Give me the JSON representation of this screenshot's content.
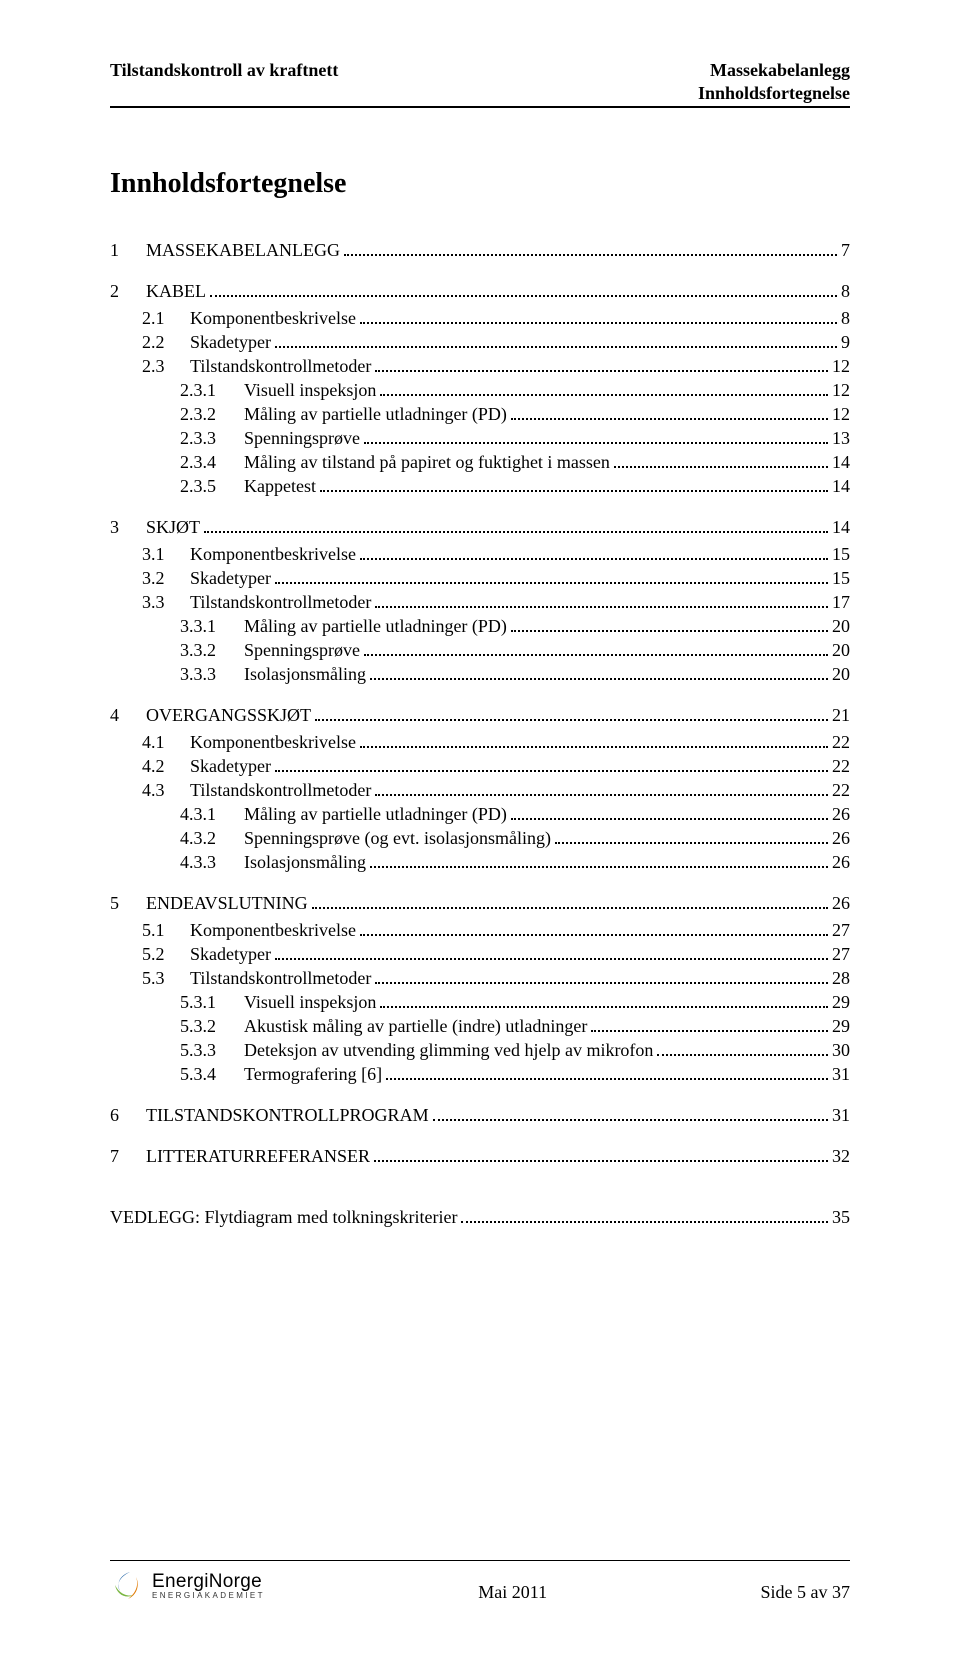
{
  "header": {
    "left": "Tilstandskontroll av kraftnett",
    "right_line1": "Massekabelanlegg",
    "right_line2": "Innholdsfortegnelse"
  },
  "toc_title": "Innholdsfortegnelse",
  "toc": [
    {
      "level": 0,
      "num": "1",
      "label": "MASSEKABELANLEGG",
      "page": "7"
    },
    {
      "level": 0,
      "num": "2",
      "label": "KABEL",
      "page": "8"
    },
    {
      "level": 1,
      "num": "2.1",
      "label": "Komponentbeskrivelse",
      "page": "8"
    },
    {
      "level": 1,
      "num": "2.2",
      "label": "Skadetyper",
      "page": "9"
    },
    {
      "level": 1,
      "num": "2.3",
      "label": "Tilstandskontrollmetoder",
      "page": "12"
    },
    {
      "level": 2,
      "num": "2.3.1",
      "label": "Visuell inspeksjon",
      "page": "12"
    },
    {
      "level": 2,
      "num": "2.3.2",
      "label": "Måling av partielle utladninger (PD)",
      "page": "12"
    },
    {
      "level": 2,
      "num": "2.3.3",
      "label": "Spenningsprøve",
      "page": "13"
    },
    {
      "level": 2,
      "num": "2.3.4",
      "label": "Måling av tilstand på papiret og fuktighet i massen",
      "page": "14"
    },
    {
      "level": 2,
      "num": "2.3.5",
      "label": "Kappetest",
      "page": "14"
    },
    {
      "level": 0,
      "num": "3",
      "label": "SKJØT",
      "page": "14"
    },
    {
      "level": 1,
      "num": "3.1",
      "label": "Komponentbeskrivelse",
      "page": "15"
    },
    {
      "level": 1,
      "num": "3.2",
      "label": "Skadetyper",
      "page": "15"
    },
    {
      "level": 1,
      "num": "3.3",
      "label": "Tilstandskontrollmetoder",
      "page": "17"
    },
    {
      "level": 2,
      "num": "3.3.1",
      "label": "Måling av partielle utladninger (PD)",
      "page": "20"
    },
    {
      "level": 2,
      "num": "3.3.2",
      "label": "Spenningsprøve",
      "page": "20"
    },
    {
      "level": 2,
      "num": "3.3.3",
      "label": "Isolasjonsmåling",
      "page": "20"
    },
    {
      "level": 0,
      "num": "4",
      "label": "OVERGANGSSKJØT",
      "page": "21"
    },
    {
      "level": 1,
      "num": "4.1",
      "label": "Komponentbeskrivelse",
      "page": "22"
    },
    {
      "level": 1,
      "num": "4.2",
      "label": "Skadetyper",
      "page": "22"
    },
    {
      "level": 1,
      "num": "4.3",
      "label": "Tilstandskontrollmetoder",
      "page": "22"
    },
    {
      "level": 2,
      "num": "4.3.1",
      "label": "Måling av partielle utladninger (PD)",
      "page": "26"
    },
    {
      "level": 2,
      "num": "4.3.2",
      "label": "Spenningsprøve (og evt. isolasjonsmåling)",
      "page": "26"
    },
    {
      "level": 2,
      "num": "4.3.3",
      "label": "Isolasjonsmåling",
      "page": "26"
    },
    {
      "level": 0,
      "num": "5",
      "label": "ENDEAVSLUTNING",
      "page": "26"
    },
    {
      "level": 1,
      "num": "5.1",
      "label": "Komponentbeskrivelse",
      "page": "27"
    },
    {
      "level": 1,
      "num": "5.2",
      "label": "Skadetyper",
      "page": "27"
    },
    {
      "level": 1,
      "num": "5.3",
      "label": "Tilstandskontrollmetoder",
      "page": "28"
    },
    {
      "level": 2,
      "num": "5.3.1",
      "label": "Visuell inspeksjon",
      "page": "29"
    },
    {
      "level": 2,
      "num": "5.3.2",
      "label": "Akustisk måling av partielle (indre) utladninger",
      "page": "29"
    },
    {
      "level": 2,
      "num": "5.3.3",
      "label": "Deteksjon av utvending glimming ved hjelp av mikrofon",
      "page": "30"
    },
    {
      "level": 2,
      "num": "5.3.4",
      "label": "Termografering [6]",
      "page": "31"
    },
    {
      "level": 0,
      "num": "6",
      "label": "TILSTANDSKONTROLLPROGRAM",
      "page": "31"
    },
    {
      "level": 0,
      "num": "7",
      "label": "LITTERATURREFERANSER",
      "page": "32"
    }
  ],
  "appendix": {
    "label": "VEDLEGG: Flytdiagram med tolkningskriterier",
    "page": "35"
  },
  "footer": {
    "logo_main": "EnergiNorge",
    "logo_sub": "ENERGIAKADEMIET",
    "center": "Mai 2011",
    "right": "Side 5 av 37"
  },
  "colors": {
    "text": "#000000",
    "background": "#ffffff",
    "logo_blue": "#1a5fa3",
    "logo_green": "#7bb642",
    "logo_orange": "#e07800"
  }
}
